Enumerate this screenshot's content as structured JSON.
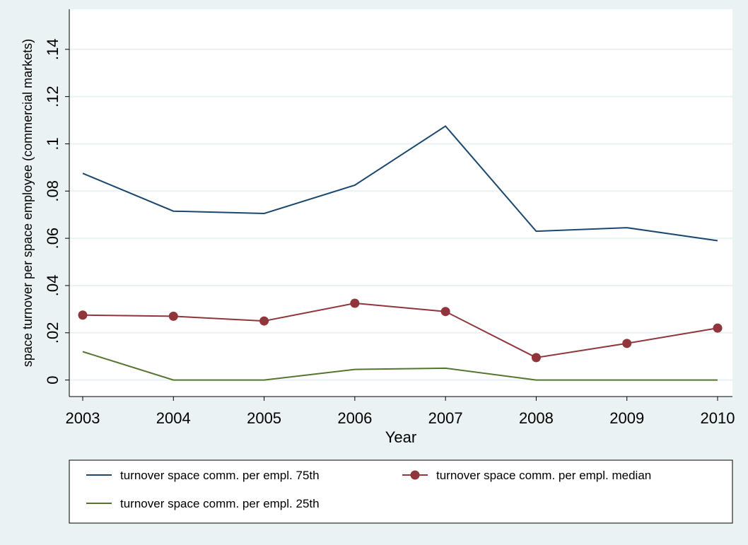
{
  "chart_data": {
    "type": "line",
    "ylabel": "space turnover per space employee (commercial markets)",
    "xlabel": "Year",
    "x": [
      2003,
      2004,
      2005,
      2006,
      2007,
      2008,
      2009,
      2010
    ],
    "xticks": [
      "2003",
      "2004",
      "2005",
      "2006",
      "2007",
      "2008",
      "2009",
      "2010"
    ],
    "yticks": [
      "0",
      ".02",
      ".04",
      ".06",
      ".08",
      ".1",
      ".12",
      ".14"
    ],
    "ytick_values": [
      0,
      0.02,
      0.04,
      0.06,
      0.08,
      0.1,
      0.12,
      0.14
    ],
    "ylim": [
      -0.007,
      0.157
    ],
    "grid": true,
    "legend_position": "bottom",
    "series": [
      {
        "name": "turnover space comm. per empl. 75th",
        "color": "#1a476f",
        "marker": "none",
        "values": [
          0.0875,
          0.0715,
          0.0705,
          0.0825,
          0.1075,
          0.063,
          0.0645,
          0.059
        ]
      },
      {
        "name": "turnover space comm. per empl. median",
        "color": "#90353b",
        "marker": "circle",
        "values": [
          0.0275,
          0.027,
          0.025,
          0.0325,
          0.029,
          0.0095,
          0.0155,
          0.022
        ]
      },
      {
        "name": "turnover space comm. per empl. 25th",
        "color": "#55752f",
        "marker": "none",
        "values": [
          0.012,
          0.0,
          0.0,
          0.0045,
          0.005,
          0.0,
          0.0,
          0.0
        ]
      }
    ]
  }
}
